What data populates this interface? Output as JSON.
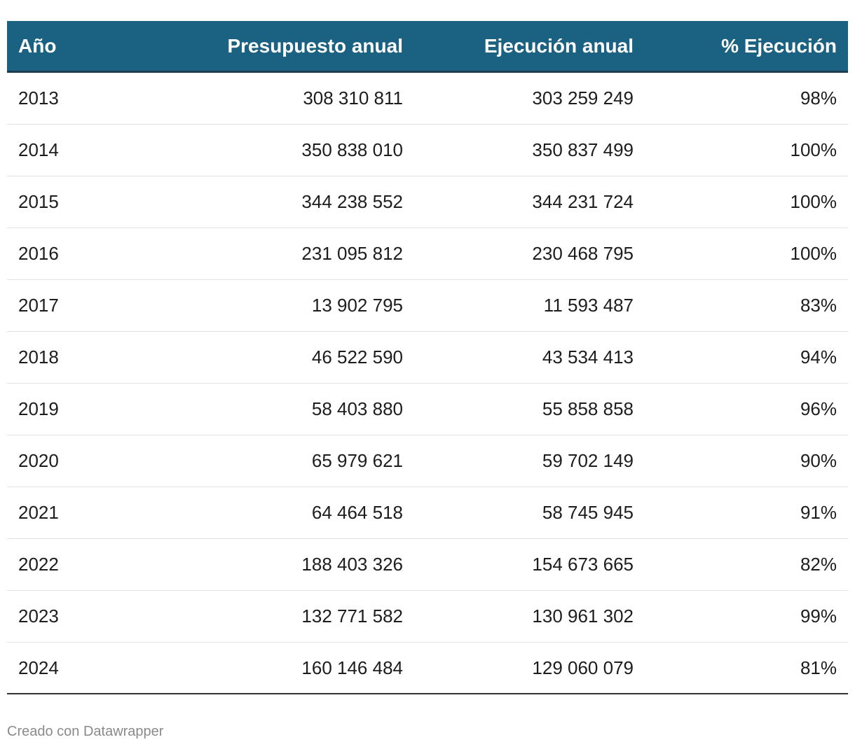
{
  "table": {
    "header": [
      "Año",
      "Presupuesto anual",
      "Ejecución anual",
      "% Ejecución"
    ],
    "rows": [
      [
        "2013",
        "308 310 811",
        "303 259 249",
        "98%"
      ],
      [
        "2014",
        "350 838 010",
        "350 837 499",
        "100%"
      ],
      [
        "2015",
        "344 238 552",
        "344 231 724",
        "100%"
      ],
      [
        "2016",
        "231 095 812",
        "230 468 795",
        "100%"
      ],
      [
        "2017",
        "13 902 795",
        "11 593 487",
        "83%"
      ],
      [
        "2018",
        "46 522 590",
        "43 534 413",
        "94%"
      ],
      [
        "2019",
        "58 403 880",
        "55 858 858",
        "96%"
      ],
      [
        "2020",
        "65 979 621",
        "59 702 149",
        "90%"
      ],
      [
        "2021",
        "64 464 518",
        "58 745 945",
        "91%"
      ],
      [
        "2022",
        "188 403 326",
        "154 673 665",
        "82%"
      ],
      [
        "2023",
        "132 771 582",
        "130 961 302",
        "99%"
      ],
      [
        "2024",
        "160 146 484",
        "129 060 079",
        "81%"
      ]
    ]
  },
  "footer": "Creado con Datawrapper"
}
